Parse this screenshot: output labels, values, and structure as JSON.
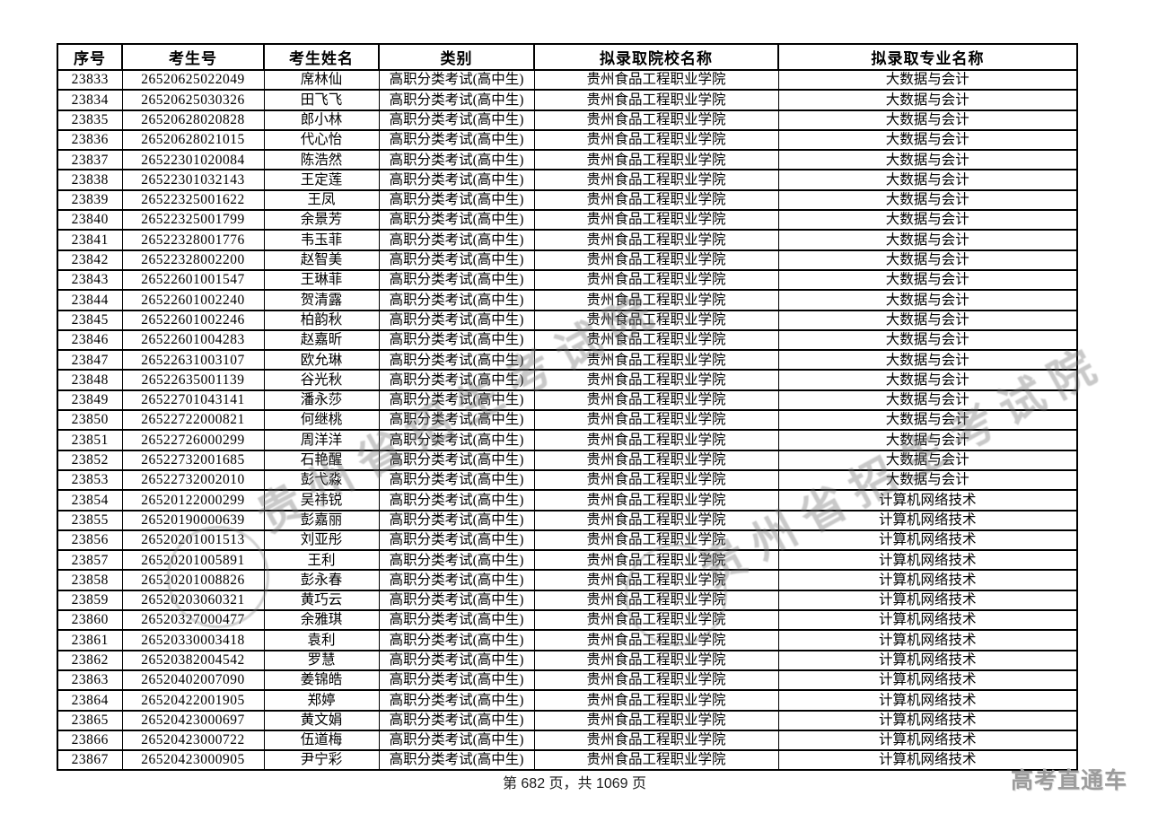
{
  "document": {
    "footer_page_text": "第 682 页，共 1069 页",
    "brand_text": "高考直通车",
    "watermark_text": "贵州省招生考试院",
    "colors": {
      "watermark_gray": "#707070",
      "brand_gray": "#9c9c9c",
      "table_border": "#000000"
    }
  },
  "table": {
    "columns": [
      "序号",
      "考生号",
      "考生姓名",
      "类别",
      "拟录取院校名称",
      "拟录取专业名称"
    ],
    "rows": [
      [
        "23833",
        "26520625022049",
        "席林仙",
        "高职分类考试(高中生)",
        "贵州食品工程职业学院",
        "大数据与会计"
      ],
      [
        "23834",
        "26520625030326",
        "田飞飞",
        "高职分类考试(高中生)",
        "贵州食品工程职业学院",
        "大数据与会计"
      ],
      [
        "23835",
        "26520628020828",
        "郎小林",
        "高职分类考试(高中生)",
        "贵州食品工程职业学院",
        "大数据与会计"
      ],
      [
        "23836",
        "26520628021015",
        "代心怡",
        "高职分类考试(高中生)",
        "贵州食品工程职业学院",
        "大数据与会计"
      ],
      [
        "23837",
        "26522301020084",
        "陈浩然",
        "高职分类考试(高中生)",
        "贵州食品工程职业学院",
        "大数据与会计"
      ],
      [
        "23838",
        "26522301032143",
        "王定莲",
        "高职分类考试(高中生)",
        "贵州食品工程职业学院",
        "大数据与会计"
      ],
      [
        "23839",
        "26522325001622",
        "王凤",
        "高职分类考试(高中生)",
        "贵州食品工程职业学院",
        "大数据与会计"
      ],
      [
        "23840",
        "26522325001799",
        "余景芳",
        "高职分类考试(高中生)",
        "贵州食品工程职业学院",
        "大数据与会计"
      ],
      [
        "23841",
        "26522328001776",
        "韦玉菲",
        "高职分类考试(高中生)",
        "贵州食品工程职业学院",
        "大数据与会计"
      ],
      [
        "23842",
        "26522328002200",
        "赵智美",
        "高职分类考试(高中生)",
        "贵州食品工程职业学院",
        "大数据与会计"
      ],
      [
        "23843",
        "26522601001547",
        "王琳菲",
        "高职分类考试(高中生)",
        "贵州食品工程职业学院",
        "大数据与会计"
      ],
      [
        "23844",
        "26522601002240",
        "贺清露",
        "高职分类考试(高中生)",
        "贵州食品工程职业学院",
        "大数据与会计"
      ],
      [
        "23845",
        "26522601002246",
        "柏韵秋",
        "高职分类考试(高中生)",
        "贵州食品工程职业学院",
        "大数据与会计"
      ],
      [
        "23846",
        "26522601004283",
        "赵嘉昕",
        "高职分类考试(高中生)",
        "贵州食品工程职业学院",
        "大数据与会计"
      ],
      [
        "23847",
        "26522631003107",
        "欧允琳",
        "高职分类考试(高中生)",
        "贵州食品工程职业学院",
        "大数据与会计"
      ],
      [
        "23848",
        "26522635001139",
        "谷光秋",
        "高职分类考试(高中生)",
        "贵州食品工程职业学院",
        "大数据与会计"
      ],
      [
        "23849",
        "26522701043141",
        "潘永莎",
        "高职分类考试(高中生)",
        "贵州食品工程职业学院",
        "大数据与会计"
      ],
      [
        "23850",
        "26522722000821",
        "何继桃",
        "高职分类考试(高中生)",
        "贵州食品工程职业学院",
        "大数据与会计"
      ],
      [
        "23851",
        "26522726000299",
        "周洋洋",
        "高职分类考试(高中生)",
        "贵州食品工程职业学院",
        "大数据与会计"
      ],
      [
        "23852",
        "26522732001685",
        "石艳醒",
        "高职分类考试(高中生)",
        "贵州食品工程职业学院",
        "大数据与会计"
      ],
      [
        "23853",
        "26522732002010",
        "彭弋淼",
        "高职分类考试(高中生)",
        "贵州食品工程职业学院",
        "大数据与会计"
      ],
      [
        "23854",
        "26520122000299",
        "吴祎锐",
        "高职分类考试(高中生)",
        "贵州食品工程职业学院",
        "计算机网络技术"
      ],
      [
        "23855",
        "26520190000639",
        "彭嘉丽",
        "高职分类考试(高中生)",
        "贵州食品工程职业学院",
        "计算机网络技术"
      ],
      [
        "23856",
        "26520201001513",
        "刘亚彤",
        "高职分类考试(高中生)",
        "贵州食品工程职业学院",
        "计算机网络技术"
      ],
      [
        "23857",
        "26520201005891",
        "王利",
        "高职分类考试(高中生)",
        "贵州食品工程职业学院",
        "计算机网络技术"
      ],
      [
        "23858",
        "26520201008826",
        "彭永春",
        "高职分类考试(高中生)",
        "贵州食品工程职业学院",
        "计算机网络技术"
      ],
      [
        "23859",
        "26520203060321",
        "黄巧云",
        "高职分类考试(高中生)",
        "贵州食品工程职业学院",
        "计算机网络技术"
      ],
      [
        "23860",
        "26520327000477",
        "余雅琪",
        "高职分类考试(高中生)",
        "贵州食品工程职业学院",
        "计算机网络技术"
      ],
      [
        "23861",
        "26520330003418",
        "袁利",
        "高职分类考试(高中生)",
        "贵州食品工程职业学院",
        "计算机网络技术"
      ],
      [
        "23862",
        "26520382004542",
        "罗慧",
        "高职分类考试(高中生)",
        "贵州食品工程职业学院",
        "计算机网络技术"
      ],
      [
        "23863",
        "26520402007090",
        "姜锦皓",
        "高职分类考试(高中生)",
        "贵州食品工程职业学院",
        "计算机网络技术"
      ],
      [
        "23864",
        "26520422001905",
        "郑婷",
        "高职分类考试(高中生)",
        "贵州食品工程职业学院",
        "计算机网络技术"
      ],
      [
        "23865",
        "26520423000697",
        "黄文娟",
        "高职分类考试(高中生)",
        "贵州食品工程职业学院",
        "计算机网络技术"
      ],
      [
        "23866",
        "26520423000722",
        "伍道梅",
        "高职分类考试(高中生)",
        "贵州食品工程职业学院",
        "计算机网络技术"
      ],
      [
        "23867",
        "26520423000905",
        "尹宁彩",
        "高职分类考试(高中生)",
        "贵州食品工程职业学院",
        "计算机网络技术"
      ]
    ]
  }
}
